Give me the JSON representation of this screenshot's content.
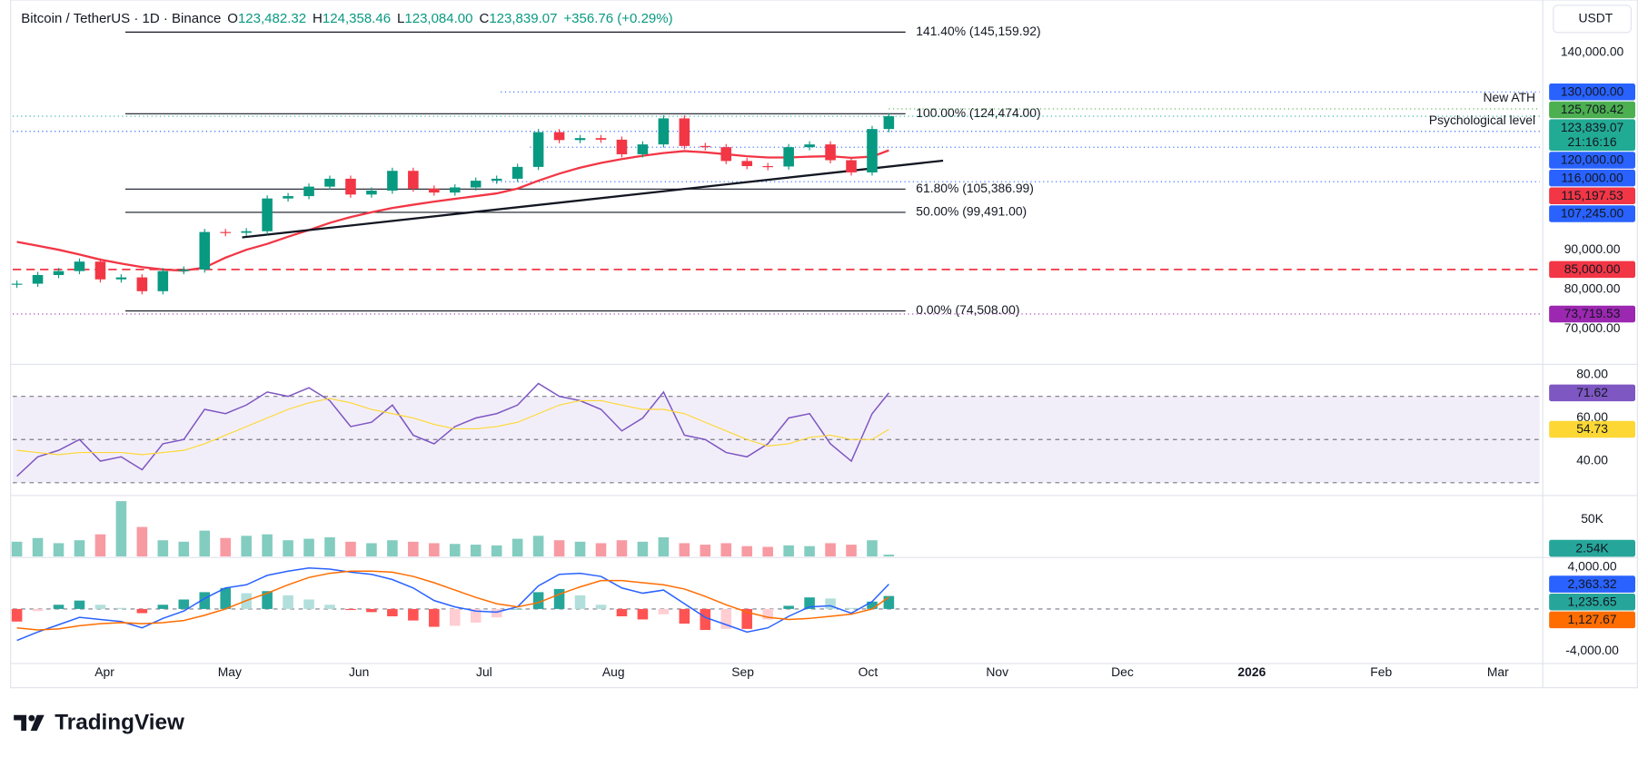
{
  "header": {
    "symbol": "Bitcoin / TetherUS · 1D · Binance",
    "ohlc": [
      {
        "key": "O",
        "value": "123,482.32"
      },
      {
        "key": "H",
        "value": "124,358.46"
      },
      {
        "key": "L",
        "value": "123,084.00"
      },
      {
        "key": "C",
        "value": "123,839.07"
      }
    ],
    "change": "+356.76 (+0.29%)",
    "currency": "USDT"
  },
  "footer": {
    "brand": "TradingView"
  },
  "chart_data": [
    {
      "type": "candlestick",
      "up_color": "#089981",
      "down_color": "#f23645",
      "xlim": [
        "2025-03-10",
        "2026-03-11"
      ],
      "xticks": [
        {
          "value": "2025-04-01",
          "label": "Apr"
        },
        {
          "value": "2025-05-01",
          "label": "May"
        },
        {
          "value": "2025-06-01",
          "label": "Jun"
        },
        {
          "value": "2025-07-01",
          "label": "Jul"
        },
        {
          "value": "2025-08-01",
          "label": "Aug"
        },
        {
          "value": "2025-09-01",
          "label": "Sep"
        },
        {
          "value": "2025-10-01",
          "label": "Oct"
        },
        {
          "value": "2025-11-01",
          "label": "Nov"
        },
        {
          "value": "2025-12-01",
          "label": "Dec"
        },
        {
          "value": "2026-01-01",
          "label": "2026",
          "bold": true
        },
        {
          "value": "2026-02-01",
          "label": "Feb"
        },
        {
          "value": "2026-03-01",
          "label": "Mar"
        }
      ],
      "ylim": [
        61500,
        153300
      ],
      "yticks": [
        {
          "value": 140000,
          "label": "140,000.00"
        },
        {
          "value": 90000,
          "label": "90,000.00"
        },
        {
          "value": 80000,
          "label": "80,000.00"
        },
        {
          "value": 70000,
          "label": "70,000.00"
        }
      ],
      "x": [
        "2025-03-11",
        "2025-03-16",
        "2025-03-21",
        "2025-03-26",
        "2025-03-31",
        "2025-04-05",
        "2025-04-10",
        "2025-04-15",
        "2025-04-20",
        "2025-04-25",
        "2025-04-30",
        "2025-05-05",
        "2025-05-10",
        "2025-05-15",
        "2025-05-20",
        "2025-05-25",
        "2025-05-30",
        "2025-06-04",
        "2025-06-09",
        "2025-06-14",
        "2025-06-19",
        "2025-06-24",
        "2025-06-29",
        "2025-07-04",
        "2025-07-09",
        "2025-07-14",
        "2025-07-19",
        "2025-07-24",
        "2025-07-29",
        "2025-08-03",
        "2025-08-08",
        "2025-08-13",
        "2025-08-18",
        "2025-08-23",
        "2025-08-28",
        "2025-09-02",
        "2025-09-07",
        "2025-09-12",
        "2025-09-17",
        "2025-09-22",
        "2025-09-27",
        "2025-10-02",
        "2025-10-06"
      ],
      "values": [
        81400,
        83600,
        84600,
        87000,
        82500,
        83000,
        79500,
        84600,
        85000,
        94500,
        94300,
        94700,
        103000,
        103600,
        106000,
        108000,
        104000,
        105000,
        110000,
        105500,
        104500,
        105800,
        107500,
        108000,
        111000,
        119800,
        117800,
        118300,
        117900,
        114200,
        116700,
        123300,
        116300,
        116000,
        112500,
        111200,
        111100,
        116000,
        116700,
        112700,
        109600,
        120600,
        123839.07
      ],
      "sma": {
        "color": "#f23645",
        "values": [
          92000,
          91000,
          90000,
          88800,
          87500,
          86500,
          85600,
          85000,
          84700,
          85500,
          88000,
          90000,
          91500,
          93300,
          95000,
          96800,
          98300,
          99500,
          100600,
          101400,
          102200,
          102900,
          103600,
          104300,
          105500,
          107500,
          109300,
          110800,
          112000,
          113000,
          113800,
          114500,
          115000,
          114700,
          114200,
          113700,
          113400,
          113400,
          113600,
          113700,
          113300,
          113600,
          115197.53
        ]
      },
      "trendline": {
        "color": "#131722",
        "x": [
          "2025-05-04",
          "2025-10-19"
        ],
        "values": [
          93150,
          112600
        ]
      },
      "fib": {
        "x": [
          "2025-04-06",
          "2025-10-10"
        ],
        "levels": [
          {
            "value": 145159.92,
            "label": "141.40% (145,159.92)"
          },
          {
            "value": 124474,
            "label": "100.00% (124,474.00)"
          },
          {
            "value": 105386.99,
            "label": "61.80% (105,386.99)"
          },
          {
            "value": 99491,
            "label": "50.00% (99,491.00)"
          },
          {
            "value": 74508,
            "label": "0.00% (74,508.00)"
          }
        ]
      },
      "levels": [
        {
          "value": 130000,
          "label": "130,000.00",
          "color": "#2962ff",
          "line": "dotted",
          "from": "2025-07-05"
        },
        {
          "value": 125708.42,
          "label": "125,708.42",
          "color": "#4caf50",
          "line": "dotted",
          "from": "2025-10-06",
          "note": "New ATH"
        },
        {
          "value": 123839.07,
          "label": "123,839.07",
          "color": "#22ab94",
          "line": "dotted",
          "countdown": "21:16:16"
        },
        {
          "value": 120000,
          "label": "120,000.00",
          "color": "#2962ff",
          "line": "dotted",
          "note": "Psychological level"
        },
        {
          "value": 116000,
          "label": "116,000.00",
          "color": "#2962ff",
          "line": "dotted",
          "from": "2025-07-12"
        },
        {
          "value": 115197.53,
          "label": "115,197.53",
          "color": "#f23645"
        },
        {
          "value": 107245,
          "label": "107,245.00",
          "color": "#2962ff",
          "line": "dotted",
          "from": "2025-07-03"
        },
        {
          "value": 85000,
          "label": "85,000.00",
          "color": "#f23645",
          "line": "dashed"
        },
        {
          "value": 73719.53,
          "label": "73,719.53",
          "color": "#9c27b0",
          "line": "dotted"
        }
      ]
    },
    {
      "type": "line",
      "ylim": [
        25,
        83.4
      ],
      "yticks": [
        {
          "value": 80,
          "label": "80.00"
        },
        {
          "value": 60,
          "label": "60.00"
        },
        {
          "value": 40,
          "label": "40.00"
        }
      ],
      "bands": [
        70,
        50,
        30
      ],
      "band_color": "#7e57c2",
      "series": [
        {
          "color": "#7e57c2",
          "values": [
            33,
            42,
            45,
            50,
            40,
            42,
            36,
            48,
            50,
            64,
            62,
            66,
            72,
            70,
            74,
            68,
            56,
            58,
            66,
            52,
            48,
            56,
            60,
            62,
            66,
            76,
            70,
            68,
            64,
            54,
            60,
            72,
            52,
            50,
            44,
            42,
            48,
            60,
            62,
            48,
            40,
            62,
            71.62
          ]
        },
        {
          "color": "#fdd835",
          "values": [
            45,
            44,
            43,
            44,
            44,
            44,
            43,
            44,
            45,
            48,
            52,
            56,
            60,
            64,
            67,
            69,
            67,
            64,
            62,
            60,
            57,
            55,
            55,
            56,
            58,
            62,
            66,
            68,
            68,
            66,
            64,
            64,
            62,
            58,
            54,
            50,
            47,
            48,
            51,
            52,
            50,
            50,
            54.73
          ]
        }
      ]
    },
    {
      "type": "bar",
      "ylim": [
        0,
        74000
      ],
      "yticks": [
        {
          "value": 50000,
          "label": "50K"
        }
      ],
      "color": "#26a69a",
      "last_value_label": "2.54K",
      "values": [
        20000,
        25000,
        18000,
        22000,
        30000,
        75000,
        40000,
        22000,
        20000,
        35000,
        25000,
        28000,
        30000,
        22000,
        24000,
        26000,
        20000,
        18000,
        22000,
        20000,
        18000,
        17000,
        16000,
        15000,
        24000,
        28000,
        22000,
        20000,
        18000,
        22000,
        20000,
        26000,
        18000,
        16000,
        18000,
        14000,
        13000,
        15000,
        14000,
        18000,
        16000,
        22000,
        2540
      ]
    },
    {
      "type": "macd",
      "ylim": [
        -5200,
        4800
      ],
      "yticks": [
        {
          "value": 4000,
          "label": "4,000.00"
        },
        {
          "value": -4000,
          "label": "-4,000.00"
        }
      ],
      "zero_line": true,
      "series": [
        {
          "color": "#2962ff",
          "last_value_label": "2,363.32",
          "values": [
            -3000,
            -2200,
            -1500,
            -800,
            -1000,
            -1200,
            -1800,
            -900,
            -200,
            1000,
            2000,
            2300,
            3200,
            3600,
            3900,
            3800,
            3500,
            3300,
            2800,
            2000,
            800,
            200,
            -200,
            -300,
            200,
            2200,
            3300,
            3400,
            3100,
            2000,
            1500,
            1800,
            500,
            -800,
            -1500,
            -2200,
            -1800,
            -700,
            200,
            300,
            -400,
            700,
            2363.32
          ]
        },
        {
          "color": "#ff6d00",
          "last_value_label": "1,127.67",
          "values": [
            -1800,
            -2000,
            -1900,
            -1600,
            -1400,
            -1300,
            -1400,
            -1300,
            -1100,
            -600,
            0,
            800,
            1500,
            2300,
            3000,
            3400,
            3600,
            3600,
            3500,
            3100,
            2500,
            1800,
            1100,
            500,
            200,
            600,
            1400,
            2100,
            2700,
            2700,
            2500,
            2300,
            1900,
            1200,
            400,
            -300,
            -800,
            -1000,
            -900,
            -700,
            -500,
            0,
            1127.67
          ]
        }
      ],
      "histogram": {
        "color": "#26a69a",
        "last_value_label": "1,235.65",
        "values": [
          -1200,
          -200,
          400,
          800,
          400,
          100,
          -400,
          400,
          900,
          1600,
          2000,
          1500,
          1700,
          1300,
          900,
          400,
          -100,
          -300,
          -700,
          -1100,
          -1700,
          -1600,
          -1300,
          -800,
          0,
          1600,
          1900,
          1300,
          400,
          -700,
          -1000,
          -500,
          -1400,
          -2000,
          -1900,
          -1900,
          -1000,
          300,
          1100,
          1000,
          100,
          700,
          1235.65
        ]
      }
    }
  ]
}
